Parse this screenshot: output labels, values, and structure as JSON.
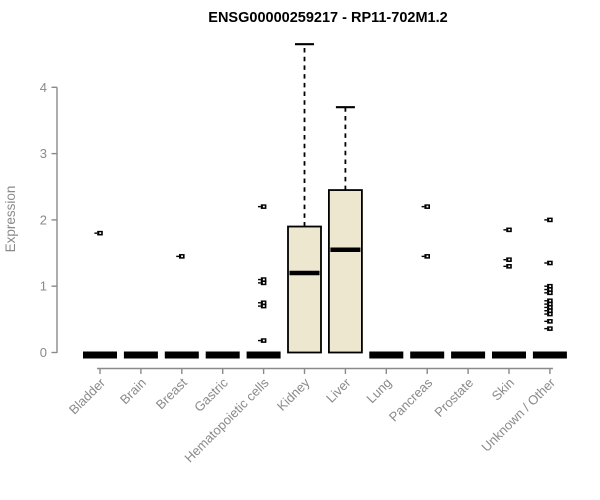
{
  "chart_data": {
    "type": "boxplot",
    "title": "ENSG00000259217 - RP11-702M1.2",
    "ylabel": "Expression",
    "xlabel": "",
    "yticks": [
      0,
      1,
      2,
      3,
      4
    ],
    "ylim": [
      0,
      4.8
    ],
    "grid": false,
    "legend": "none",
    "categories": [
      "Bladder",
      "Brain",
      "Breast",
      "Gastric",
      "Hematopoietic cells",
      "Kidney",
      "Liver",
      "Lung",
      "Pancreas",
      "Prostate",
      "Skin",
      "Unknown / Other"
    ],
    "boxes": [
      {
        "category": "Bladder",
        "q1": 0,
        "median": 0,
        "q3": 0,
        "whisker_low": 0,
        "whisker_high": 0,
        "outliers": [
          1.8
        ]
      },
      {
        "category": "Brain",
        "q1": 0,
        "median": 0,
        "q3": 0,
        "whisker_low": 0,
        "whisker_high": 0,
        "outliers": []
      },
      {
        "category": "Breast",
        "q1": 0,
        "median": 0,
        "q3": 0,
        "whisker_low": 0,
        "whisker_high": 0,
        "outliers": [
          1.45
        ]
      },
      {
        "category": "Gastric",
        "q1": 0,
        "median": 0,
        "q3": 0,
        "whisker_low": 0,
        "whisker_high": 0,
        "outliers": []
      },
      {
        "category": "Hematopoietic cells",
        "q1": 0,
        "median": 0,
        "q3": 0,
        "whisker_low": 0,
        "whisker_high": 0,
        "outliers": [
          2.2,
          1.1,
          1.05,
          0.75,
          0.7,
          0.18
        ]
      },
      {
        "category": "Kidney",
        "q1": 0,
        "median": 1.2,
        "q3": 1.9,
        "whisker_low": 0,
        "whisker_high": 4.65,
        "outliers": []
      },
      {
        "category": "Liver",
        "q1": 0,
        "median": 1.55,
        "q3": 2.45,
        "whisker_low": 0,
        "whisker_high": 3.7,
        "outliers": []
      },
      {
        "category": "Lung",
        "q1": 0,
        "median": 0,
        "q3": 0,
        "whisker_low": 0,
        "whisker_high": 0,
        "outliers": []
      },
      {
        "category": "Pancreas",
        "q1": 0,
        "median": 0,
        "q3": 0,
        "whisker_low": 0,
        "whisker_high": 0,
        "outliers": [
          2.2,
          1.45
        ]
      },
      {
        "category": "Prostate",
        "q1": 0,
        "median": 0,
        "q3": 0,
        "whisker_low": 0,
        "whisker_high": 0,
        "outliers": []
      },
      {
        "category": "Skin",
        "q1": 0,
        "median": 0,
        "q3": 0,
        "whisker_low": 0,
        "whisker_high": 0,
        "outliers": [
          1.85,
          1.4,
          1.3
        ]
      },
      {
        "category": "Unknown / Other",
        "q1": 0,
        "median": 0,
        "q3": 0,
        "whisker_low": 0,
        "whisker_high": 0,
        "outliers": [
          2.0,
          1.35,
          1.0,
          0.95,
          0.9,
          0.78,
          0.73,
          0.68,
          0.63,
          0.58,
          0.47,
          0.36
        ]
      }
    ],
    "colors": {
      "background": "#FFFFFF",
      "box_fill": "#EDE7CF",
      "box_stroke": "#000000",
      "median": "#000000",
      "zero_bar": "#000000",
      "outlier": "#000000",
      "axis": "#8A8A8A",
      "title": "#000000"
    }
  }
}
